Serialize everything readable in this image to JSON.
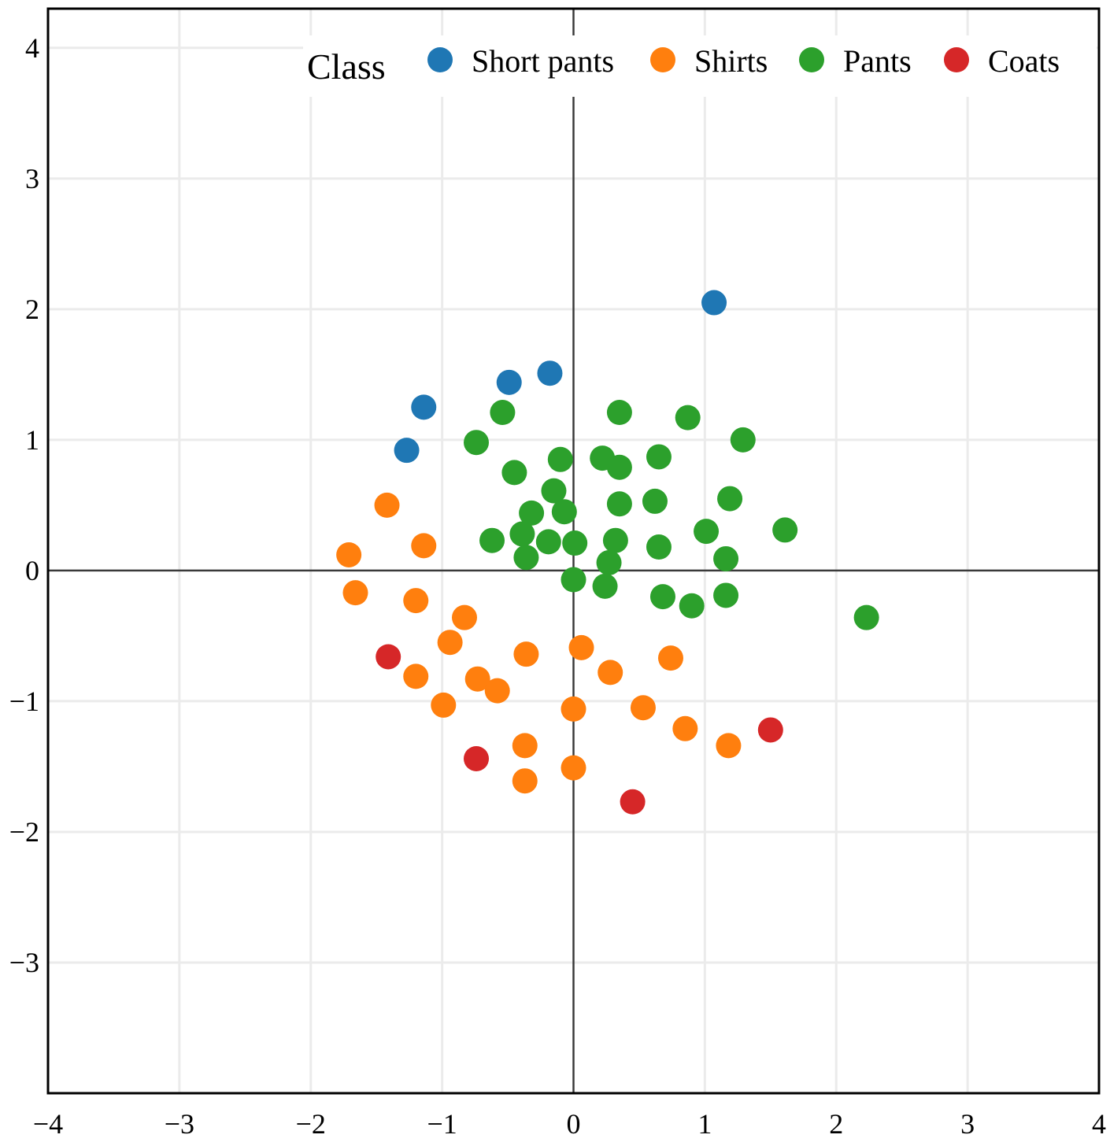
{
  "chart_data": {
    "type": "scatter",
    "title": "",
    "xlabel": "",
    "ylabel": "",
    "xlim": [
      -4,
      4
    ],
    "ylim": [
      -4,
      4.3
    ],
    "x_ticks": [
      -4,
      -3,
      -2,
      -1,
      0,
      1,
      2,
      3,
      4
    ],
    "y_ticks": [
      -3,
      -2,
      -1,
      0,
      1,
      2,
      3,
      4
    ],
    "x_tick_labels": [
      "−4",
      "−3",
      "−2",
      "−1",
      "0",
      "1",
      "2",
      "3",
      "4"
    ],
    "y_tick_labels": [
      "−3",
      "−2",
      "−1",
      "0",
      "1",
      "2",
      "3",
      "4"
    ],
    "grid": true,
    "zero_lines": true,
    "legend": {
      "title": "Class",
      "placement": "top-right",
      "orientation": "horizontal"
    },
    "series": [
      {
        "name": "Short pants",
        "color": "#1f77b4",
        "points": [
          [
            1.07,
            2.05
          ],
          [
            -0.18,
            1.51
          ],
          [
            -0.49,
            1.44
          ],
          [
            -1.14,
            1.25
          ],
          [
            -1.27,
            0.92
          ]
        ]
      },
      {
        "name": "Shirts",
        "color": "#ff7f0e",
        "points": [
          [
            -1.42,
            0.5
          ],
          [
            -1.14,
            0.19
          ],
          [
            -1.71,
            0.12
          ],
          [
            -1.66,
            -0.17
          ],
          [
            -1.2,
            -0.23
          ],
          [
            -0.83,
            -0.36
          ],
          [
            -0.94,
            -0.55
          ],
          [
            -0.36,
            -0.64
          ],
          [
            0.06,
            -0.59
          ],
          [
            0.74,
            -0.67
          ],
          [
            -1.2,
            -0.81
          ],
          [
            -0.73,
            -0.83
          ],
          [
            -0.58,
            -0.92
          ],
          [
            0.28,
            -0.78
          ],
          [
            -0.99,
            -1.03
          ],
          [
            0.0,
            -1.06
          ],
          [
            0.53,
            -1.05
          ],
          [
            0.85,
            -1.21
          ],
          [
            1.18,
            -1.34
          ],
          [
            -0.37,
            -1.34
          ],
          [
            0.0,
            -1.51
          ],
          [
            -0.37,
            -1.61
          ]
        ]
      },
      {
        "name": "Pants",
        "color": "#2ca02c",
        "points": [
          [
            -0.54,
            1.21
          ],
          [
            0.35,
            1.21
          ],
          [
            0.87,
            1.17
          ],
          [
            1.29,
            1.0
          ],
          [
            -0.74,
            0.98
          ],
          [
            -0.1,
            0.85
          ],
          [
            0.22,
            0.86
          ],
          [
            0.35,
            0.79
          ],
          [
            0.65,
            0.87
          ],
          [
            -0.45,
            0.75
          ],
          [
            -0.15,
            0.61
          ],
          [
            0.35,
            0.51
          ],
          [
            0.62,
            0.53
          ],
          [
            1.19,
            0.55
          ],
          [
            -0.32,
            0.44
          ],
          [
            -0.07,
            0.45
          ],
          [
            1.61,
            0.31
          ],
          [
            1.01,
            0.3
          ],
          [
            -0.62,
            0.23
          ],
          [
            -0.39,
            0.28
          ],
          [
            -0.19,
            0.22
          ],
          [
            0.01,
            0.21
          ],
          [
            0.32,
            0.23
          ],
          [
            0.65,
            0.18
          ],
          [
            -0.36,
            0.1
          ],
          [
            0.27,
            0.06
          ],
          [
            1.16,
            0.09
          ],
          [
            0.0,
            -0.07
          ],
          [
            0.24,
            -0.12
          ],
          [
            0.68,
            -0.2
          ],
          [
            0.9,
            -0.27
          ],
          [
            1.16,
            -0.19
          ],
          [
            2.23,
            -0.36
          ]
        ]
      },
      {
        "name": "Coats",
        "color": "#d62728",
        "points": [
          [
            -1.41,
            -0.66
          ],
          [
            1.5,
            -1.22
          ],
          [
            -0.74,
            -1.44
          ],
          [
            0.45,
            -1.77
          ]
        ]
      }
    ]
  }
}
